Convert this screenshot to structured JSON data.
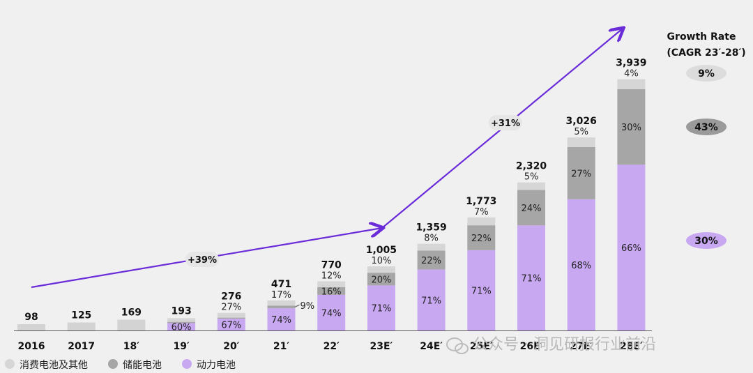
{
  "chart_data": {
    "type": "bar",
    "stacked": true,
    "categories": [
      "2016",
      "2017",
      "18′",
      "19′",
      "20′",
      "21′",
      "22′",
      "23E′",
      "24E′",
      "25E′",
      "26E′",
      "27E′",
      "28E′"
    ],
    "totals": [
      98,
      125,
      169,
      193,
      276,
      471,
      770,
      1005,
      1359,
      1773,
      2320,
      3026,
      3939
    ],
    "total_labels": [
      "98",
      "125",
      "169",
      "193",
      "276",
      "471",
      "770",
      "1,005",
      "1,359",
      "1,773",
      "2,320",
      "3,026",
      "3,939"
    ],
    "series": [
      {
        "name": "动力电池",
        "color": "#c9a8f2",
        "share": [
          null,
          null,
          null,
          60,
          67,
          74,
          74,
          71,
          71,
          71,
          71,
          68,
          66
        ],
        "labels": [
          "",
          "",
          "",
          "60%",
          "67%",
          "74%",
          "74%",
          "71%",
          "71%",
          "71%",
          "71%",
          "68%",
          "66%"
        ]
      },
      {
        "name": "储能电池",
        "color": "#a6a6a6",
        "share": [
          null,
          null,
          null,
          null,
          null,
          9,
          16,
          20,
          22,
          22,
          24,
          27,
          30
        ],
        "labels": [
          "",
          "",
          "",
          "",
          "",
          "9%",
          "16%",
          "20%",
          "22%",
          "22%",
          "24%",
          "27%",
          "30%"
        ]
      },
      {
        "name": "消费电池及其他",
        "color": "#d6d6d6",
        "share": [
          null,
          null,
          null,
          null,
          27,
          17,
          12,
          10,
          8,
          7,
          5,
          5,
          4
        ],
        "labels": [
          "",
          "",
          "",
          "",
          "27%",
          "17%",
          "12%",
          "10%",
          "8%",
          "7%",
          "5%",
          "5%",
          "4%"
        ]
      }
    ],
    "annotations": [
      {
        "text": "+39%",
        "from": "2016",
        "to": "23E′"
      },
      {
        "text": "+31%",
        "from": "23E′",
        "to": "28E′"
      }
    ],
    "growth_rate": {
      "title_line1": "Growth Rate",
      "title_line2": "(CAGR 23′-28′)",
      "items": [
        {
          "label": "9%",
          "color": "#dcdcdc"
        },
        {
          "label": "43%",
          "color": "#9a9a9a"
        },
        {
          "label": "30%",
          "color": "#c9a8f2"
        }
      ]
    },
    "legend": {
      "position": "bottom-left",
      "items": [
        {
          "name": "消费电池及其他",
          "color": "#d6d6d6"
        },
        {
          "name": "储能电池",
          "color": "#a6a6a6"
        },
        {
          "name": "动力电池",
          "color": "#c9a8f2"
        }
      ]
    },
    "watermark": "公众号 · 洞见研报行业前沿"
  },
  "accent_color": "#6a2bd9"
}
